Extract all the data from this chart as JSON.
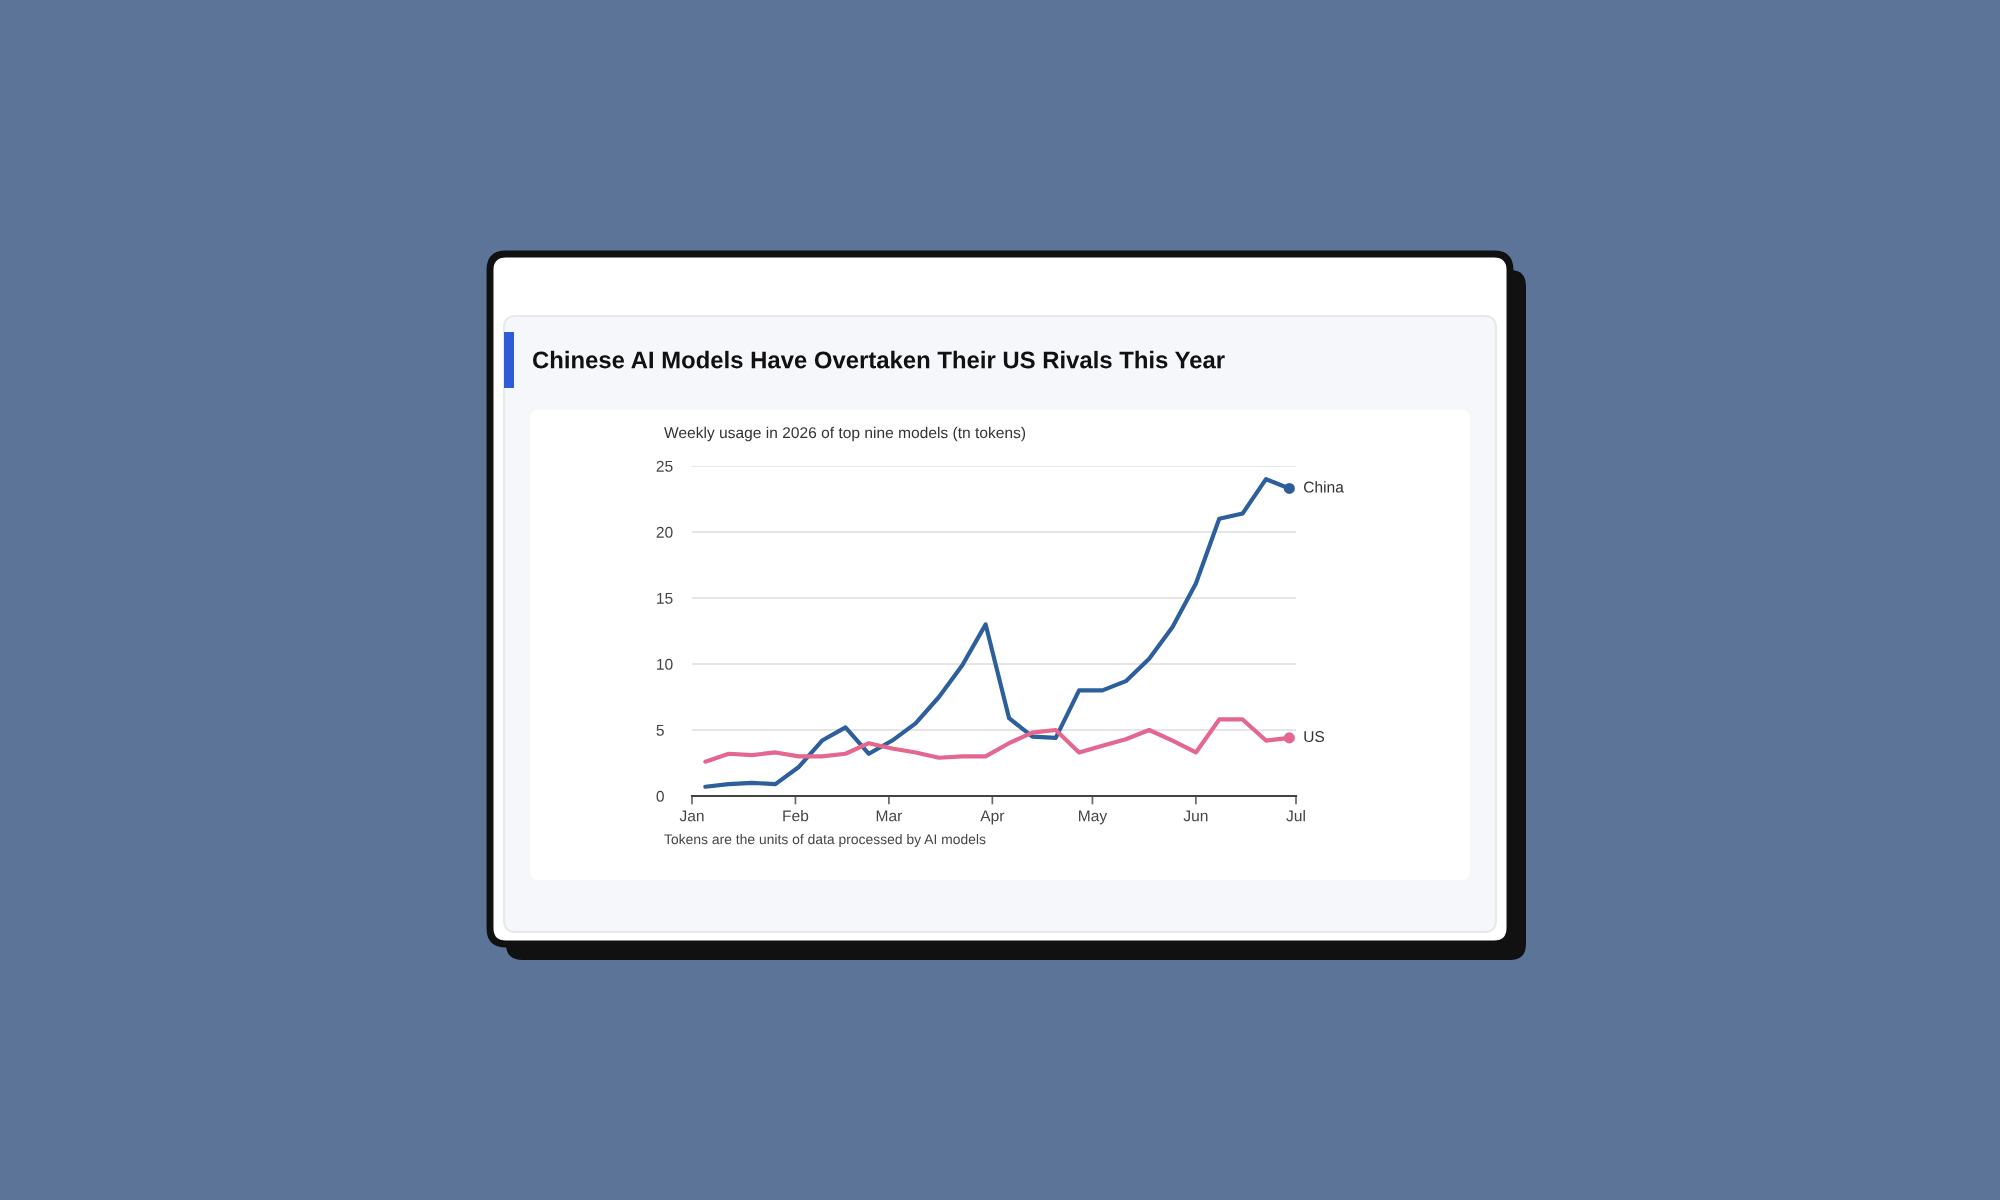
{
  "chart_data": {
    "type": "line",
    "title": "Chinese AI Models Have Overtaken Their US Rivals This Year",
    "subtitle": "Weekly usage in 2026 of top nine models (tn tokens)",
    "annotations": [
      "Tokens are the units of data processed by AI models"
    ],
    "x": [
      "2026-01-05",
      "2026-01-12",
      "2026-01-19",
      "2026-01-26",
      "2026-02-02",
      "2026-02-09",
      "2026-02-16",
      "2026-02-23",
      "2026-03-02",
      "2026-03-09",
      "2026-03-16",
      "2026-03-23",
      "2026-03-30",
      "2026-04-06",
      "2026-04-13",
      "2026-04-20",
      "2026-04-27",
      "2026-05-04",
      "2026-05-11",
      "2026-05-18",
      "2026-05-25",
      "2026-06-01",
      "2026-06-08",
      "2026-06-15",
      "2026-06-22",
      "2026-06-29"
    ],
    "series": [
      {
        "name": "China",
        "color": "#2c5f9c",
        "values": [
          0.7,
          0.9,
          1.0,
          0.9,
          2.2,
          4.2,
          5.2,
          3.2,
          4.2,
          5.5,
          7.5,
          9.9,
          13.0,
          5.9,
          4.5,
          4.4,
          8.0,
          8.0,
          8.7,
          10.4,
          12.8,
          16.1,
          21.0,
          21.4,
          24.0,
          23.3
        ]
      },
      {
        "name": "US",
        "color": "#e3678f",
        "values": [
          2.6,
          3.2,
          3.1,
          3.3,
          3.0,
          3.0,
          3.2,
          4.0,
          3.6,
          3.3,
          2.9,
          3.0,
          3.0,
          4.0,
          4.8,
          5.0,
          3.3,
          3.8,
          4.3,
          5.0,
          4.2,
          3.3,
          5.8,
          5.8,
          4.2,
          4.4
        ]
      }
    ],
    "xlim": [
      "2026-01-01",
      "2026-07-01"
    ],
    "xticks": [
      {
        "value": "2026-01-01",
        "label": "Jan"
      },
      {
        "value": "2026-02-01",
        "label": "Feb"
      },
      {
        "value": "2026-03-01",
        "label": "Mar"
      },
      {
        "value": "2026-04-01",
        "label": "Apr"
      },
      {
        "value": "2026-05-01",
        "label": "May"
      },
      {
        "value": "2026-06-01",
        "label": "Jun"
      },
      {
        "value": "2026-07-01",
        "label": "Jul"
      }
    ],
    "ylim": [
      0,
      25
    ],
    "yticks": [
      0,
      5,
      10,
      15,
      20,
      25
    ],
    "grid": "y",
    "marker": "none",
    "line_style": "solid"
  }
}
